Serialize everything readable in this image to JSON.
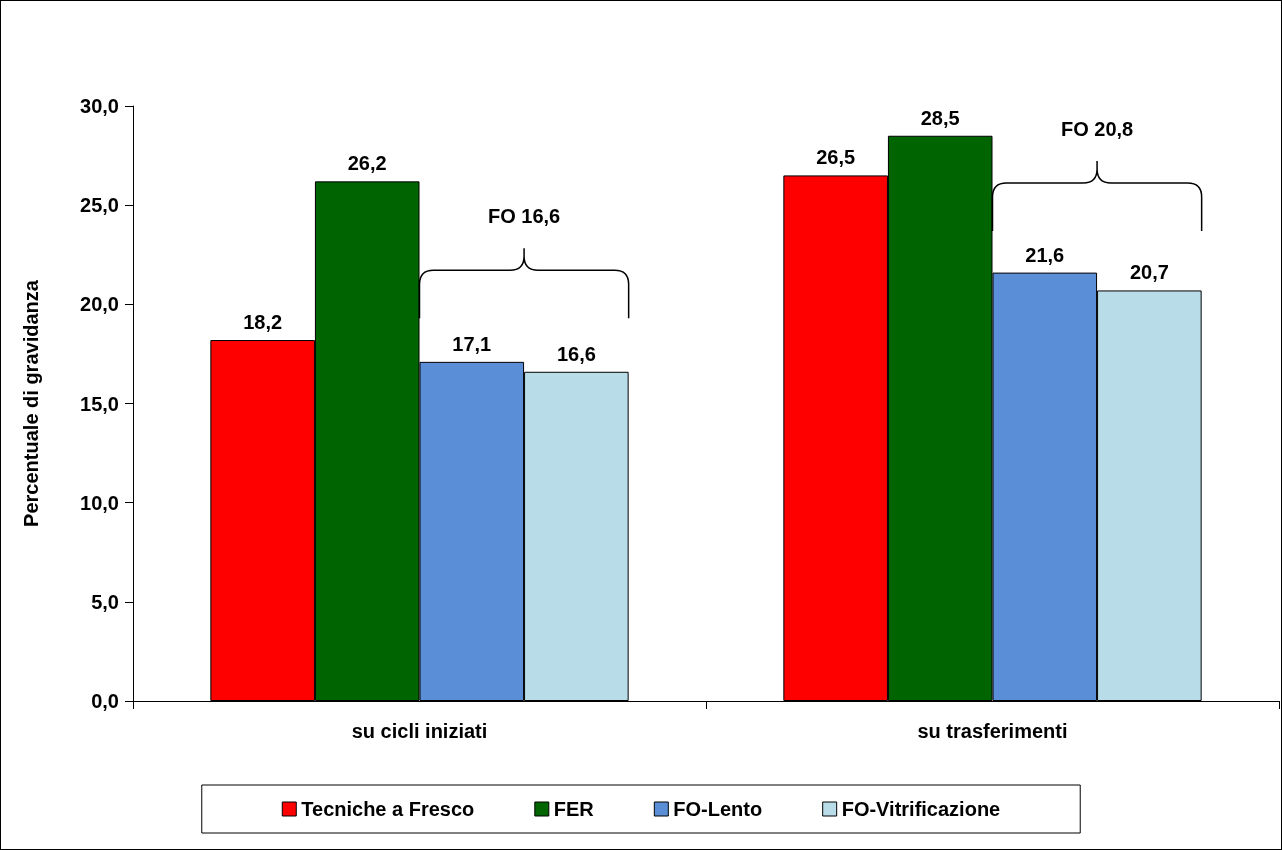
{
  "chart_data": {
    "type": "bar",
    "ylabel": "Percentuale di gravidanza",
    "categories": [
      "su cicli iniziati",
      "su trasferimenti"
    ],
    "series": [
      {
        "name": "Tecniche a Fresco",
        "color": "#ff0000",
        "values": [
          18.2,
          26.5
        ],
        "value_labels": [
          "18,2",
          "26,5"
        ]
      },
      {
        "name": "FER",
        "color": "#006400",
        "values": [
          26.2,
          28.5
        ],
        "value_labels": [
          "26,2",
          "28,5"
        ]
      },
      {
        "name": "FO-Lento",
        "color": "#5a8ed6",
        "values": [
          17.1,
          21.6
        ],
        "value_labels": [
          "17,1",
          "21,6"
        ]
      },
      {
        "name": "FO-Vitrificazione",
        "color": "#b8dde8",
        "values": [
          16.6,
          20.7
        ],
        "value_labels": [
          "16,6",
          "20,7"
        ]
      }
    ],
    "ylim": [
      0,
      30
    ],
    "yticks": [
      {
        "value": 0,
        "label": "0,0"
      },
      {
        "value": 5,
        "label": "5,0"
      },
      {
        "value": 10,
        "label": "10,0"
      },
      {
        "value": 15,
        "label": "15,0"
      },
      {
        "value": 20,
        "label": "20,0"
      },
      {
        "value": 25,
        "label": "25,0"
      },
      {
        "value": 30,
        "label": "30,0"
      }
    ],
    "annotations": [
      {
        "text": "FO 16,6",
        "x": "su cicli iniziati",
        "y": 19.3
      },
      {
        "text": "FO 20,8",
        "x": "su trasferimenti",
        "y": 23.7
      }
    ],
    "grid": false,
    "legend": "bottom"
  }
}
